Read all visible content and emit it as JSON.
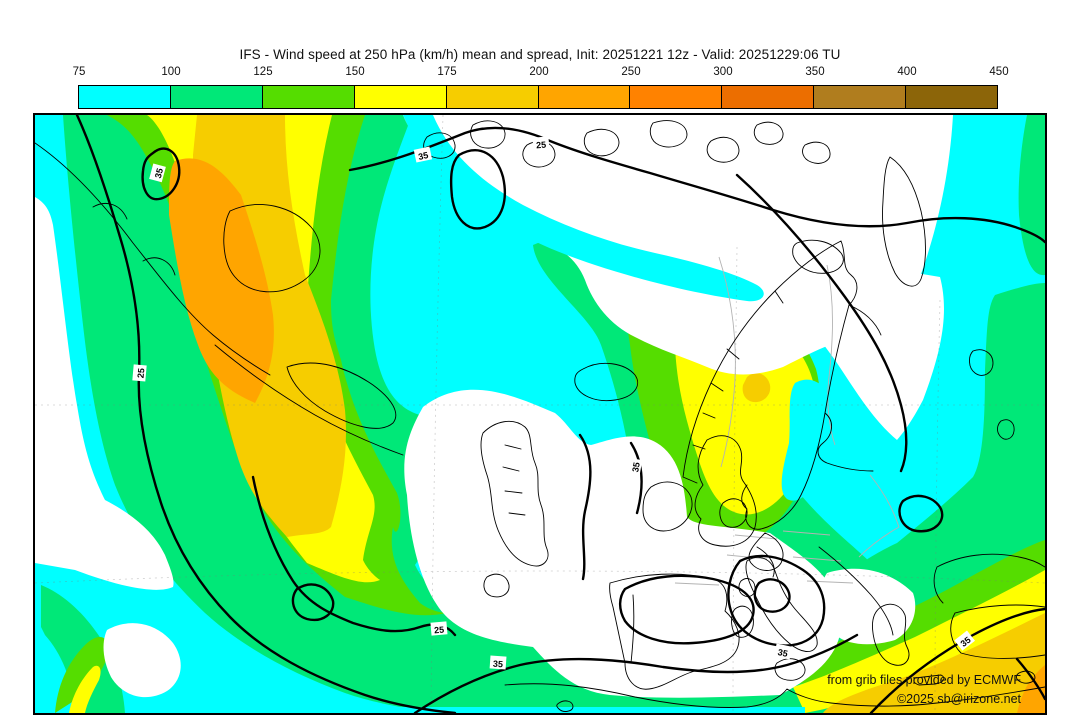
{
  "header": {
    "title": "IFS - Wind speed at 250 hPa (km/h) mean and spread, Init: 20251221 12z - Valid: 20251229:06 TU"
  },
  "colorbar": {
    "unit": "km/h",
    "tick_labels": [
      "75",
      "100",
      "125",
      "150",
      "175",
      "200",
      "250",
      "300",
      "350",
      "400",
      "450"
    ],
    "segment_colors": [
      "#00ffff",
      "#00e878",
      "#55dd00",
      "#ffff00",
      "#f6cd00",
      "#ffa500",
      "#ff8200",
      "#ec6e00",
      "#b07d1e",
      "#8c6509"
    ]
  },
  "map": {
    "contour_labels": [
      "35",
      "25",
      "35",
      "25",
      "35",
      "25",
      "35",
      "35",
      "35"
    ],
    "attribution": {
      "line1": "from grib files provided by ECMWF",
      "line2": "©2025 sb@irizone.net"
    }
  },
  "chart_data": {
    "type": "heatmap",
    "title": "IFS - Wind speed at 250 hPa (km/h) mean and spread, Init: 20251221 12z - Valid: 20251229:06 TU",
    "model": "IFS",
    "variable": "Wind speed at 250 hPa",
    "unit": "km/h",
    "init": "20251221 12z",
    "valid": "20251229:06 TU",
    "statistics": [
      "mean (color fill)",
      "spread (black contours)"
    ],
    "fill_levels_kmh": [
      75,
      100,
      125,
      150,
      175,
      200,
      250,
      300,
      350,
      400,
      450
    ],
    "fill_colors": [
      "#00ffff",
      "#00e878",
      "#55dd00",
      "#ffff00",
      "#f6cd00",
      "#ffa500",
      "#ff8200",
      "#ec6e00",
      "#b07d1e",
      "#8c6509"
    ],
    "spread_contour_values_kmh": [
      25,
      35
    ],
    "legend_position": "top",
    "region": "North Atlantic and Europe",
    "notable_features": [
      {
        "region": "northwest Atlantic jet streak (top left)",
        "mean_wind_kmh": "200-250"
      },
      {
        "region": "streak over Scandinavia",
        "mean_wind_kmh": "150-200"
      },
      {
        "region": "southeast corner (eastern Mediterranean / Turkey)",
        "mean_wind_kmh": "175-250"
      },
      {
        "region": "central Atlantic, Iberia, Arctic land areas",
        "mean_wind_kmh": "below 75"
      }
    ]
  }
}
